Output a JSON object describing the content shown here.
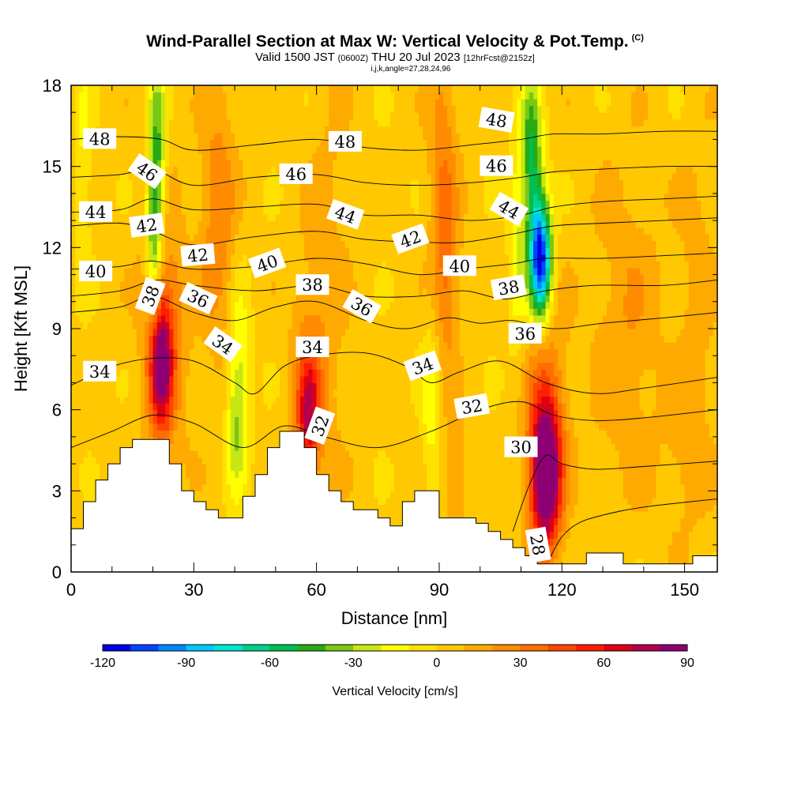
{
  "header": {
    "title": "Wind-Parallel Section at Max W: Vertical Velocity & Pot.Temp.",
    "copyright": "(C)",
    "valid_prefix": "Valid 1500 JST",
    "valid_utc": "(0600Z)",
    "valid_date": "THU 20 Jul 2023",
    "forecast": "[12hrFcst@2152z]",
    "indices": "i,j,k,angle=27,28,24,96"
  },
  "chart_data": {
    "type": "heatmap",
    "title": "Wind-Parallel Section at Max W: Vertical Velocity & Pot.Temp.",
    "xlabel": "Distance [nm]",
    "ylabel": "Height [Kft MSL]",
    "xlim": [
      0,
      158
    ],
    "ylim": [
      0,
      18
    ],
    "xticks": [
      0,
      30,
      60,
      90,
      120,
      150
    ],
    "yticks": [
      0,
      3,
      6,
      9,
      12,
      15,
      18
    ],
    "colorbar": {
      "label": "Vertical Velocity [cm/s]",
      "ticks": [
        -120,
        -90,
        -60,
        -30,
        0,
        30,
        60,
        90
      ],
      "levels": [
        -120,
        -110,
        -100,
        -90,
        -80,
        -70,
        -60,
        -50,
        -40,
        -30,
        -20,
        -10,
        0,
        10,
        20,
        30,
        40,
        50,
        60,
        70,
        80,
        90
      ],
      "colors": [
        "#0000e6",
        "#0044ff",
        "#0088ff",
        "#00c8ff",
        "#00e6d2",
        "#00d28c",
        "#00be50",
        "#28aa14",
        "#78c814",
        "#c8e614",
        "#ffff00",
        "#ffe100",
        "#ffc800",
        "#ffaa00",
        "#ff8c00",
        "#ff6e00",
        "#ff4600",
        "#ff1e00",
        "#dc0014",
        "#b4004b",
        "#8c0073"
      ]
    },
    "terrain": [
      [
        0,
        1.6
      ],
      [
        3,
        1.6
      ],
      [
        3,
        2.6
      ],
      [
        6,
        2.6
      ],
      [
        6,
        3.4
      ],
      [
        9,
        3.4
      ],
      [
        9,
        4.0
      ],
      [
        12,
        4.0
      ],
      [
        12,
        4.6
      ],
      [
        15,
        4.6
      ],
      [
        15,
        4.9
      ],
      [
        24,
        4.9
      ],
      [
        24,
        4.0
      ],
      [
        27,
        4.0
      ],
      [
        27,
        3.0
      ],
      [
        30,
        3.0
      ],
      [
        30,
        2.6
      ],
      [
        33,
        2.6
      ],
      [
        33,
        2.3
      ],
      [
        36,
        2.3
      ],
      [
        36,
        2.0
      ],
      [
        42,
        2.0
      ],
      [
        42,
        2.8
      ],
      [
        45,
        2.8
      ],
      [
        45,
        3.6
      ],
      [
        48,
        3.6
      ],
      [
        48,
        4.6
      ],
      [
        51,
        4.6
      ],
      [
        51,
        5.2
      ],
      [
        57,
        5.2
      ],
      [
        57,
        4.6
      ],
      [
        60,
        4.6
      ],
      [
        60,
        3.6
      ],
      [
        63,
        3.6
      ],
      [
        63,
        3.0
      ],
      [
        66,
        3.0
      ],
      [
        66,
        2.6
      ],
      [
        69,
        2.6
      ],
      [
        69,
        2.3
      ],
      [
        75,
        2.3
      ],
      [
        75,
        2.0
      ],
      [
        78,
        2.0
      ],
      [
        78,
        1.7
      ],
      [
        81,
        1.7
      ],
      [
        81,
        2.6
      ],
      [
        84,
        2.6
      ],
      [
        84,
        3.0
      ],
      [
        87,
        3.0
      ],
      [
        87,
        3.0
      ],
      [
        90,
        3.0
      ],
      [
        90,
        2.0
      ],
      [
        99,
        2.0
      ],
      [
        99,
        1.8
      ],
      [
        102,
        1.8
      ],
      [
        102,
        1.5
      ],
      [
        105,
        1.5
      ],
      [
        105,
        1.2
      ],
      [
        108,
        1.2
      ],
      [
        108,
        0.9
      ],
      [
        111,
        0.9
      ],
      [
        111,
        0.6
      ],
      [
        114,
        0.6
      ],
      [
        114,
        0.3
      ],
      [
        126,
        0.3
      ],
      [
        126,
        0.7
      ],
      [
        135,
        0.7
      ],
      [
        135,
        0.3
      ],
      [
        152,
        0.3
      ],
      [
        152,
        0.6
      ],
      [
        158,
        0.6
      ]
    ],
    "w_features": [
      {
        "x": 22,
        "y": 7.8,
        "sx": 2.0,
        "sy": 1.8,
        "w": 70
      },
      {
        "x": 23,
        "y": 9.0,
        "sx": 4.0,
        "sy": 3.5,
        "w": 25
      },
      {
        "x": 21,
        "y": 15.0,
        "sx": 1.5,
        "sy": 2.8,
        "w": -50
      },
      {
        "x": 20,
        "y": 12.0,
        "sx": 1.2,
        "sy": 2.0,
        "w": -30
      },
      {
        "x": 36,
        "y": 13.0,
        "sx": 3.0,
        "sy": 3.5,
        "w": 25
      },
      {
        "x": 41,
        "y": 7.0,
        "sx": 2.0,
        "sy": 2.5,
        "w": -30
      },
      {
        "x": 40,
        "y": 5.0,
        "sx": 1.5,
        "sy": 1.5,
        "w": -15
      },
      {
        "x": 58,
        "y": 5.8,
        "sx": 2.0,
        "sy": 1.5,
        "w": 50
      },
      {
        "x": 58,
        "y": 7.0,
        "sx": 3.0,
        "sy": 3.0,
        "w": 20
      },
      {
        "x": 63,
        "y": 11.0,
        "sx": 3.5,
        "sy": 6.0,
        "w": 10
      },
      {
        "x": 88,
        "y": 6.0,
        "sx": 1.6,
        "sy": 2.5,
        "w": -20
      },
      {
        "x": 91,
        "y": 14.5,
        "sx": 2.5,
        "sy": 4.0,
        "w": 25
      },
      {
        "x": 92,
        "y": 10.5,
        "sx": 2.0,
        "sy": 2.0,
        "w": 15
      },
      {
        "x": 94,
        "y": 3.5,
        "sx": 2.0,
        "sy": 1.5,
        "w": 20
      },
      {
        "x": 116,
        "y": 3.5,
        "sx": 2.5,
        "sy": 1.8,
        "w": 90
      },
      {
        "x": 116,
        "y": 5.5,
        "sx": 3.5,
        "sy": 3.0,
        "w": 35
      },
      {
        "x": 115,
        "y": 11.5,
        "sx": 1.8,
        "sy": 1.5,
        "w": -110
      },
      {
        "x": 113,
        "y": 14.0,
        "sx": 1.8,
        "sy": 2.5,
        "w": -50
      },
      {
        "x": 112,
        "y": 16.5,
        "sx": 1.5,
        "sy": 1.5,
        "w": -20
      },
      {
        "x": 109,
        "y": 12.0,
        "sx": 1.5,
        "sy": 3.0,
        "w": -20
      },
      {
        "x": 136,
        "y": 9.0,
        "sx": 6.0,
        "sy": 4.0,
        "w": 15
      },
      {
        "x": 150,
        "y": 4.0,
        "sx": 4.0,
        "sy": 2.0,
        "w": 10
      },
      {
        "x": 3,
        "y": 15.0,
        "sx": 1.5,
        "sy": 3.0,
        "w": -15
      },
      {
        "x": 153,
        "y": 10.0,
        "sx": 3.0,
        "sy": 4.0,
        "w": 12
      }
    ],
    "isentropes": [
      {
        "theta": 28,
        "pts": [
          [
            117,
            0.5
          ],
          [
            120,
            1.3
          ],
          [
            124,
            1.8
          ],
          [
            130,
            2.1
          ],
          [
            140,
            2.4
          ],
          [
            158,
            2.7
          ]
        ]
      },
      {
        "theta": 30,
        "pts": [
          [
            108,
            1.5
          ],
          [
            112,
            3.2
          ],
          [
            116,
            4.3
          ],
          [
            120,
            4.0
          ],
          [
            128,
            3.8
          ],
          [
            140,
            3.9
          ],
          [
            158,
            4.1
          ]
        ]
      },
      {
        "theta": 32,
        "pts": [
          [
            0,
            4.6
          ],
          [
            10,
            5.2
          ],
          [
            20,
            5.8
          ],
          [
            30,
            5.5
          ],
          [
            42,
            4.6
          ],
          [
            52,
            5.4
          ],
          [
            62,
            5.0
          ],
          [
            75,
            4.6
          ],
          [
            88,
            5.2
          ],
          [
            100,
            6.0
          ],
          [
            110,
            6.3
          ],
          [
            118,
            5.8
          ],
          [
            128,
            5.6
          ],
          [
            140,
            5.7
          ],
          [
            158,
            6.0
          ]
        ]
      },
      {
        "theta": 34,
        "pts": [
          [
            0,
            6.9
          ],
          [
            10,
            7.6
          ],
          [
            20,
            7.9
          ],
          [
            30,
            7.8
          ],
          [
            40,
            7.0
          ],
          [
            45,
            6.6
          ],
          [
            52,
            7.6
          ],
          [
            60,
            8.0
          ],
          [
            72,
            8.1
          ],
          [
            82,
            7.6
          ],
          [
            88,
            7.0
          ],
          [
            95,
            7.4
          ],
          [
            105,
            7.8
          ],
          [
            116,
            7.0
          ],
          [
            128,
            6.6
          ],
          [
            140,
            6.8
          ],
          [
            158,
            7.2
          ]
        ]
      },
      {
        "theta": 36,
        "pts": [
          [
            0,
            9.6
          ],
          [
            12,
            9.8
          ],
          [
            20,
            10.2
          ],
          [
            30,
            9.6
          ],
          [
            40,
            9.3
          ],
          [
            50,
            9.8
          ],
          [
            60,
            10.0
          ],
          [
            72,
            9.3
          ],
          [
            82,
            9.0
          ],
          [
            92,
            9.4
          ],
          [
            100,
            9.2
          ],
          [
            108,
            9.3
          ],
          [
            118,
            9.0
          ],
          [
            130,
            9.2
          ],
          [
            145,
            9.4
          ],
          [
            158,
            9.6
          ]
        ]
      },
      {
        "theta": 38,
        "pts": [
          [
            0,
            10.2
          ],
          [
            12,
            10.4
          ],
          [
            21,
            10.8
          ],
          [
            30,
            10.6
          ],
          [
            45,
            10.4
          ],
          [
            60,
            10.6
          ],
          [
            72,
            10.2
          ],
          [
            85,
            10.2
          ],
          [
            96,
            10.4
          ],
          [
            106,
            10.1
          ],
          [
            116,
            10.4
          ],
          [
            128,
            10.6
          ],
          [
            145,
            10.6
          ],
          [
            158,
            10.8
          ]
        ]
      },
      {
        "theta": 40,
        "pts": [
          [
            0,
            11.2
          ],
          [
            12,
            11.3
          ],
          [
            20,
            11.5
          ],
          [
            30,
            11.2
          ],
          [
            45,
            11.3
          ],
          [
            60,
            11.6
          ],
          [
            72,
            11.4
          ],
          [
            85,
            11.0
          ],
          [
            96,
            11.2
          ],
          [
            108,
            11.4
          ],
          [
            116,
            11.6
          ],
          [
            130,
            11.6
          ],
          [
            145,
            11.7
          ],
          [
            158,
            11.8
          ]
        ]
      },
      {
        "theta": 42,
        "pts": [
          [
            0,
            12.8
          ],
          [
            12,
            12.9
          ],
          [
            20,
            12.6
          ],
          [
            30,
            12.1
          ],
          [
            45,
            12.4
          ],
          [
            60,
            12.6
          ],
          [
            72,
            12.3
          ],
          [
            85,
            12.2
          ],
          [
            96,
            12.2
          ],
          [
            108,
            12.5
          ],
          [
            118,
            12.8
          ],
          [
            130,
            12.9
          ],
          [
            145,
            13.0
          ],
          [
            158,
            13.1
          ]
        ]
      },
      {
        "theta": 44,
        "pts": [
          [
            0,
            13.3
          ],
          [
            12,
            13.4
          ],
          [
            20,
            13.8
          ],
          [
            30,
            13.4
          ],
          [
            45,
            13.5
          ],
          [
            60,
            13.6
          ],
          [
            72,
            13.2
          ],
          [
            85,
            13.2
          ],
          [
            98,
            13.0
          ],
          [
            110,
            13.2
          ],
          [
            118,
            13.5
          ],
          [
            130,
            13.7
          ],
          [
            145,
            13.8
          ],
          [
            158,
            13.9
          ]
        ]
      },
      {
        "theta": 46,
        "pts": [
          [
            0,
            14.6
          ],
          [
            12,
            14.7
          ],
          [
            20,
            14.9
          ],
          [
            30,
            14.3
          ],
          [
            45,
            14.6
          ],
          [
            60,
            14.7
          ],
          [
            72,
            14.4
          ],
          [
            85,
            14.3
          ],
          [
            98,
            14.4
          ],
          [
            110,
            14.6
          ],
          [
            118,
            14.8
          ],
          [
            130,
            14.9
          ],
          [
            145,
            15.0
          ],
          [
            158,
            15.0
          ]
        ]
      },
      {
        "theta": 48,
        "pts": [
          [
            0,
            16.0
          ],
          [
            12,
            16.1
          ],
          [
            22,
            16.0
          ],
          [
            30,
            15.6
          ],
          [
            45,
            15.8
          ],
          [
            60,
            16.0
          ],
          [
            72,
            15.7
          ],
          [
            85,
            15.6
          ],
          [
            98,
            15.8
          ],
          [
            110,
            16.0
          ],
          [
            118,
            16.2
          ],
          [
            130,
            16.2
          ],
          [
            145,
            16.3
          ],
          [
            158,
            16.3
          ]
        ]
      }
    ],
    "contour_labels": [
      {
        "text": "48",
        "x": 7,
        "y": 16.0,
        "rot": 0
      },
      {
        "text": "46",
        "x": 18.5,
        "y": 14.8,
        "rot": 35
      },
      {
        "text": "44",
        "x": 6,
        "y": 13.3,
        "rot": 0
      },
      {
        "text": "42",
        "x": 18.5,
        "y": 12.8,
        "rot": -8
      },
      {
        "text": "40",
        "x": 6,
        "y": 11.1,
        "rot": 0
      },
      {
        "text": "38",
        "x": 19.5,
        "y": 10.2,
        "rot": -70
      },
      {
        "text": "36",
        "x": 31,
        "y": 10.1,
        "rot": 25
      },
      {
        "text": "42",
        "x": 31,
        "y": 11.7,
        "rot": -5
      },
      {
        "text": "40",
        "x": 48,
        "y": 11.4,
        "rot": -20
      },
      {
        "text": "34",
        "x": 37,
        "y": 8.4,
        "rot": 35
      },
      {
        "text": "34",
        "x": 7,
        "y": 7.4,
        "rot": 0
      },
      {
        "text": "46",
        "x": 55,
        "y": 14.7,
        "rot": 0
      },
      {
        "text": "48",
        "x": 67,
        "y": 15.9,
        "rot": 0
      },
      {
        "text": "44",
        "x": 67,
        "y": 13.2,
        "rot": 20
      },
      {
        "text": "38",
        "x": 59,
        "y": 10.6,
        "rot": 0
      },
      {
        "text": "36",
        "x": 71,
        "y": 9.8,
        "rot": 30
      },
      {
        "text": "34",
        "x": 59,
        "y": 8.3,
        "rot": 0
      },
      {
        "text": "32",
        "x": 61,
        "y": 5.4,
        "rot": -70
      },
      {
        "text": "42",
        "x": 83,
        "y": 12.3,
        "rot": -20
      },
      {
        "text": "40",
        "x": 95,
        "y": 11.3,
        "rot": 0
      },
      {
        "text": "34",
        "x": 86,
        "y": 7.6,
        "rot": -20
      },
      {
        "text": "48",
        "x": 104,
        "y": 16.7,
        "rot": 10
      },
      {
        "text": "46",
        "x": 104,
        "y": 15.0,
        "rot": 0
      },
      {
        "text": "44",
        "x": 107,
        "y": 13.4,
        "rot": 30
      },
      {
        "text": "38",
        "x": 107,
        "y": 10.5,
        "rot": -10
      },
      {
        "text": "36",
        "x": 111,
        "y": 8.8,
        "rot": 0
      },
      {
        "text": "32",
        "x": 98,
        "y": 6.1,
        "rot": -10
      },
      {
        "text": "30",
        "x": 110,
        "y": 4.6,
        "rot": 0
      },
      {
        "text": "28",
        "x": 114,
        "y": 1.0,
        "rot": 80
      }
    ]
  }
}
